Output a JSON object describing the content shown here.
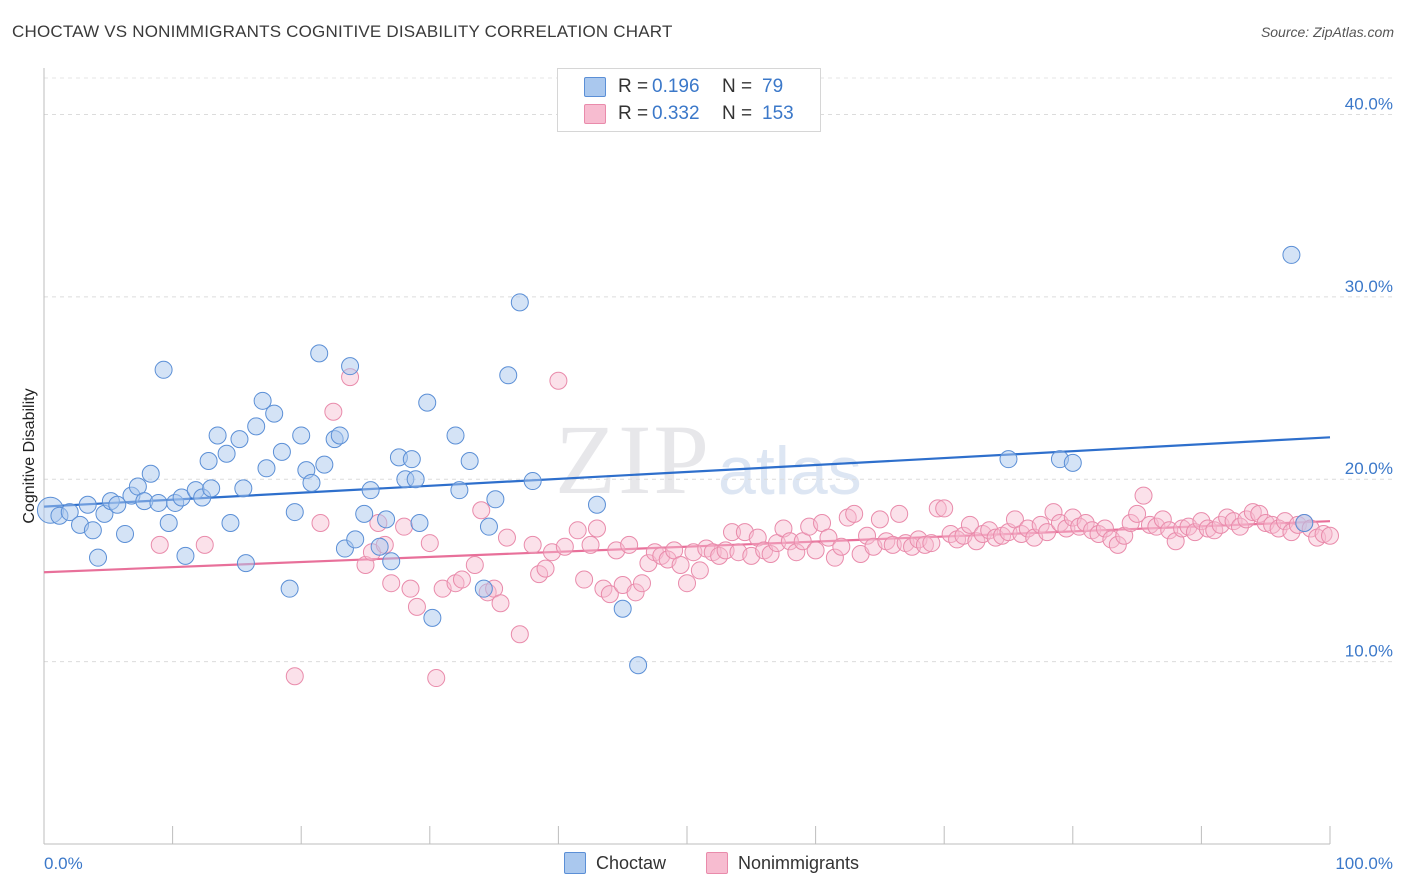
{
  "title": "CHOCTAW VS NONIMMIGRANTS COGNITIVE DISABILITY CORRELATION CHART",
  "source": "Source: ZipAtlas.com",
  "watermark": {
    "zip": "ZIP",
    "atlas": "atlas"
  },
  "legend": {
    "rows": [
      {
        "r_label": "R =",
        "r_value": "0.196",
        "n_label": "N =",
        "n_value": "79",
        "color": "#aac8ee"
      },
      {
        "r_label": "R =",
        "r_value": "0.332",
        "n_label": "N =",
        "n_value": "153",
        "color": "#f7bcd0"
      }
    ]
  },
  "bottom_legend": [
    {
      "label": "Choctaw",
      "color": "#aac8ee"
    },
    {
      "label": "Nonimmigrants",
      "color": "#f7bcd0"
    }
  ],
  "chart_data": {
    "type": "scatter",
    "ylabel": "Cognitive Disability",
    "xlim": [
      0,
      100
    ],
    "ylim": [
      0,
      42
    ],
    "x_tick_labels": [
      "0.0%",
      "100.0%"
    ],
    "y_ticks": [
      10,
      20,
      30,
      40
    ],
    "y_tick_labels": [
      "10.0%",
      "20.0%",
      "30.0%",
      "40.0%"
    ],
    "grid": true,
    "legend_position": "top-center",
    "colors": {
      "choctaw_fill": "#aac8ee",
      "choctaw_stroke": "#5b8fd6",
      "choctaw_line": "#2e6fcc",
      "nonimm_fill": "#f7bcd0",
      "nonimm_stroke": "#e98bab",
      "nonimm_line": "#e8709a"
    },
    "series": [
      {
        "name": "Choctaw",
        "trend": {
          "x": [
            0,
            100
          ],
          "y": [
            18.5,
            22.3
          ]
        },
        "points": [
          [
            0.5,
            18.3
          ],
          [
            1.2,
            18.0
          ],
          [
            2.0,
            18.2
          ],
          [
            2.8,
            17.5
          ],
          [
            3.4,
            18.6
          ],
          [
            3.8,
            17.2
          ],
          [
            4.2,
            15.7
          ],
          [
            4.7,
            18.1
          ],
          [
            5.2,
            18.8
          ],
          [
            5.7,
            18.6
          ],
          [
            6.3,
            17.0
          ],
          [
            6.8,
            19.1
          ],
          [
            7.3,
            19.6
          ],
          [
            7.8,
            18.8
          ],
          [
            8.3,
            20.3
          ],
          [
            8.9,
            18.7
          ],
          [
            9.3,
            26.0
          ],
          [
            9.7,
            17.6
          ],
          [
            10.2,
            18.7
          ],
          [
            10.7,
            19.0
          ],
          [
            11.0,
            15.8
          ],
          [
            11.8,
            19.4
          ],
          [
            12.3,
            19.0
          ],
          [
            12.8,
            21.0
          ],
          [
            13.0,
            19.5
          ],
          [
            13.5,
            22.4
          ],
          [
            14.2,
            21.4
          ],
          [
            14.5,
            17.6
          ],
          [
            15.2,
            22.2
          ],
          [
            15.5,
            19.5
          ],
          [
            15.7,
            15.4
          ],
          [
            16.5,
            22.9
          ],
          [
            17.0,
            24.3
          ],
          [
            17.3,
            20.6
          ],
          [
            17.9,
            23.6
          ],
          [
            18.5,
            21.5
          ],
          [
            19.1,
            14.0
          ],
          [
            19.5,
            18.2
          ],
          [
            20.0,
            22.4
          ],
          [
            20.4,
            20.5
          ],
          [
            20.8,
            19.8
          ],
          [
            21.4,
            26.9
          ],
          [
            21.8,
            20.8
          ],
          [
            22.6,
            22.2
          ],
          [
            23.0,
            22.4
          ],
          [
            23.4,
            16.2
          ],
          [
            23.8,
            26.2
          ],
          [
            24.2,
            16.7
          ],
          [
            24.9,
            18.1
          ],
          [
            25.4,
            19.4
          ],
          [
            26.1,
            16.3
          ],
          [
            26.6,
            17.8
          ],
          [
            27.0,
            15.5
          ],
          [
            27.6,
            21.2
          ],
          [
            28.1,
            20.0
          ],
          [
            28.6,
            21.1
          ],
          [
            28.9,
            20.0
          ],
          [
            29.2,
            17.6
          ],
          [
            29.8,
            24.2
          ],
          [
            30.2,
            12.4
          ],
          [
            32.0,
            22.4
          ],
          [
            32.3,
            19.4
          ],
          [
            33.1,
            21.0
          ],
          [
            34.2,
            14.0
          ],
          [
            34.6,
            17.4
          ],
          [
            35.1,
            18.9
          ],
          [
            36.1,
            25.7
          ],
          [
            37.0,
            29.7
          ],
          [
            38.0,
            19.9
          ],
          [
            43.0,
            18.6
          ],
          [
            45.0,
            12.9
          ],
          [
            46.2,
            9.8
          ],
          [
            75.0,
            21.1
          ],
          [
            79.0,
            21.1
          ],
          [
            80.0,
            20.9
          ],
          [
            97.0,
            32.3
          ],
          [
            98.0,
            17.6
          ]
        ]
      },
      {
        "name": "Nonimmigrants",
        "trend": {
          "x": [
            0,
            100
          ],
          "y": [
            14.9,
            17.7
          ]
        },
        "points": [
          [
            9.0,
            16.4
          ],
          [
            12.5,
            16.4
          ],
          [
            19.5,
            9.2
          ],
          [
            21.5,
            17.6
          ],
          [
            22.5,
            23.7
          ],
          [
            23.8,
            25.6
          ],
          [
            25.0,
            15.3
          ],
          [
            25.5,
            16.0
          ],
          [
            26.0,
            17.6
          ],
          [
            26.5,
            16.4
          ],
          [
            27.0,
            14.3
          ],
          [
            28.0,
            17.4
          ],
          [
            28.5,
            14.0
          ],
          [
            29.0,
            13.0
          ],
          [
            30.0,
            16.5
          ],
          [
            30.5,
            9.1
          ],
          [
            31.0,
            14.0
          ],
          [
            32.0,
            14.3
          ],
          [
            32.5,
            14.5
          ],
          [
            33.5,
            15.3
          ],
          [
            34.0,
            18.3
          ],
          [
            34.5,
            13.8
          ],
          [
            35.0,
            14.0
          ],
          [
            35.5,
            13.2
          ],
          [
            36.0,
            16.8
          ],
          [
            37.0,
            11.5
          ],
          [
            38.0,
            16.4
          ],
          [
            38.5,
            14.8
          ],
          [
            39.0,
            15.1
          ],
          [
            39.5,
            16.0
          ],
          [
            40.0,
            25.4
          ],
          [
            40.5,
            16.3
          ],
          [
            41.5,
            17.2
          ],
          [
            42.0,
            14.5
          ],
          [
            42.5,
            16.4
          ],
          [
            43.0,
            17.3
          ],
          [
            43.5,
            14.0
          ],
          [
            44.0,
            13.7
          ],
          [
            44.5,
            16.1
          ],
          [
            45.0,
            14.2
          ],
          [
            45.5,
            16.4
          ],
          [
            46.0,
            13.8
          ],
          [
            46.5,
            14.3
          ],
          [
            47.0,
            15.4
          ],
          [
            47.5,
            16.0
          ],
          [
            48.0,
            15.8
          ],
          [
            48.5,
            15.6
          ],
          [
            49.0,
            16.1
          ],
          [
            49.5,
            15.3
          ],
          [
            50.0,
            14.3
          ],
          [
            50.5,
            16.0
          ],
          [
            51.0,
            15.0
          ],
          [
            51.5,
            16.2
          ],
          [
            52.0,
            16.0
          ],
          [
            52.5,
            15.8
          ],
          [
            53.0,
            16.1
          ],
          [
            53.5,
            17.1
          ],
          [
            54.0,
            16.0
          ],
          [
            54.5,
            17.1
          ],
          [
            55.0,
            15.8
          ],
          [
            55.5,
            16.8
          ],
          [
            56.0,
            16.1
          ],
          [
            56.5,
            15.9
          ],
          [
            57.0,
            16.5
          ],
          [
            57.5,
            17.3
          ],
          [
            58.0,
            16.6
          ],
          [
            58.5,
            16.0
          ],
          [
            59.0,
            16.6
          ],
          [
            59.5,
            17.4
          ],
          [
            60.0,
            16.1
          ],
          [
            60.5,
            17.6
          ],
          [
            61.0,
            16.8
          ],
          [
            61.5,
            15.7
          ],
          [
            62.0,
            16.3
          ],
          [
            62.5,
            17.9
          ],
          [
            63.0,
            18.1
          ],
          [
            63.5,
            15.9
          ],
          [
            64.0,
            16.9
          ],
          [
            64.5,
            16.3
          ],
          [
            65.0,
            17.8
          ],
          [
            65.5,
            16.6
          ],
          [
            66.0,
            16.4
          ],
          [
            66.5,
            18.1
          ],
          [
            67.0,
            16.5
          ],
          [
            67.5,
            16.3
          ],
          [
            68.0,
            16.7
          ],
          [
            68.5,
            16.4
          ],
          [
            69.0,
            16.5
          ],
          [
            69.5,
            18.4
          ],
          [
            70.0,
            18.4
          ],
          [
            70.5,
            17.0
          ],
          [
            71.0,
            16.7
          ],
          [
            71.5,
            16.9
          ],
          [
            72.0,
            17.5
          ],
          [
            72.5,
            16.6
          ],
          [
            73.0,
            17.0
          ],
          [
            73.5,
            17.2
          ],
          [
            74.0,
            16.8
          ],
          [
            74.5,
            16.9
          ],
          [
            75.0,
            17.1
          ],
          [
            75.5,
            17.8
          ],
          [
            76.0,
            17.0
          ],
          [
            76.5,
            17.3
          ],
          [
            77.0,
            16.8
          ],
          [
            77.5,
            17.5
          ],
          [
            78.0,
            17.1
          ],
          [
            78.5,
            18.2
          ],
          [
            79.0,
            17.6
          ],
          [
            79.5,
            17.3
          ],
          [
            80.0,
            17.9
          ],
          [
            80.5,
            17.4
          ],
          [
            81.0,
            17.6
          ],
          [
            81.5,
            17.2
          ],
          [
            82.0,
            17.0
          ],
          [
            82.5,
            17.3
          ],
          [
            83.0,
            16.7
          ],
          [
            83.5,
            16.4
          ],
          [
            84.0,
            16.9
          ],
          [
            84.5,
            17.6
          ],
          [
            85.0,
            18.1
          ],
          [
            85.5,
            19.1
          ],
          [
            86.0,
            17.5
          ],
          [
            86.5,
            17.4
          ],
          [
            87.0,
            17.8
          ],
          [
            87.5,
            17.2
          ],
          [
            88.0,
            16.6
          ],
          [
            88.5,
            17.3
          ],
          [
            89.0,
            17.4
          ],
          [
            89.5,
            17.1
          ],
          [
            90.0,
            17.7
          ],
          [
            90.5,
            17.3
          ],
          [
            91.0,
            17.2
          ],
          [
            91.5,
            17.5
          ],
          [
            92.0,
            17.9
          ],
          [
            92.5,
            17.7
          ],
          [
            93.0,
            17.4
          ],
          [
            93.5,
            17.8
          ],
          [
            94.0,
            18.2
          ],
          [
            94.5,
            18.1
          ],
          [
            95.0,
            17.6
          ],
          [
            95.5,
            17.5
          ],
          [
            96.0,
            17.3
          ],
          [
            96.5,
            17.7
          ],
          [
            97.0,
            17.1
          ],
          [
            97.5,
            17.5
          ],
          [
            98.0,
            17.6
          ],
          [
            98.5,
            17.3
          ],
          [
            99.0,
            16.8
          ],
          [
            99.5,
            17.0
          ],
          [
            100.0,
            16.9
          ]
        ]
      }
    ]
  }
}
